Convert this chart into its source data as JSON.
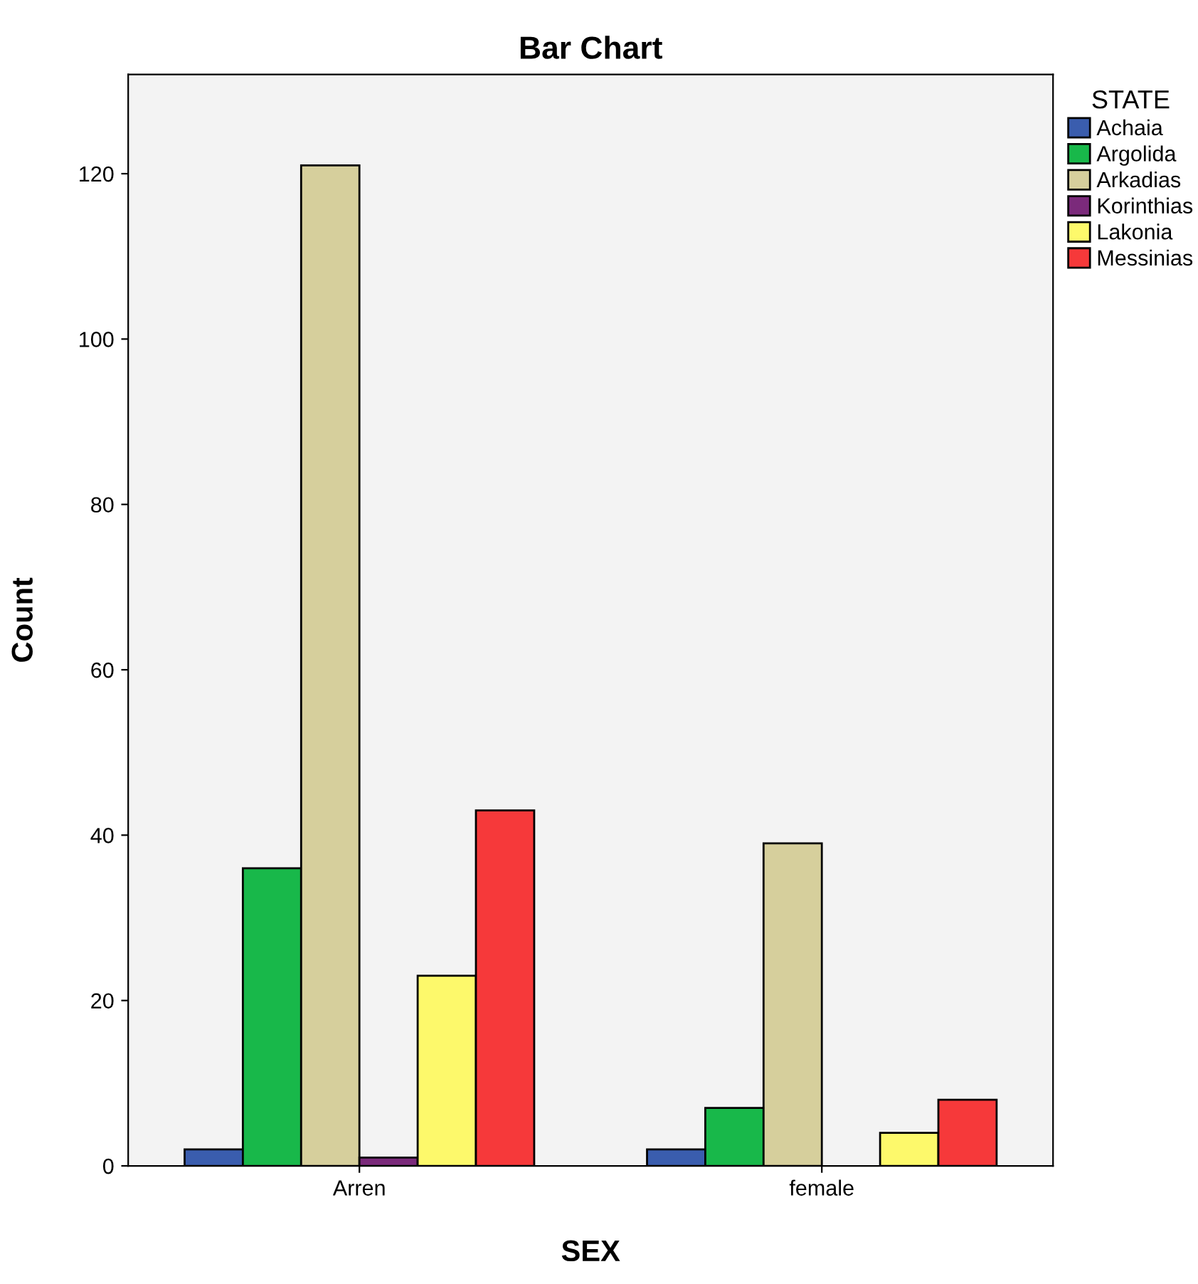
{
  "chart_data": {
    "type": "bar",
    "title": "Bar Chart",
    "xlabel": "SEX",
    "ylabel": "Count",
    "legend_title": "STATE",
    "categories": [
      "Arren",
      "female"
    ],
    "series": [
      {
        "name": "Achaia",
        "color": "#3a5dae",
        "values": [
          2,
          2
        ]
      },
      {
        "name": "Argolida",
        "color": "#18b84a",
        "values": [
          36,
          7
        ]
      },
      {
        "name": "Arkadias",
        "color": "#d6cf9c",
        "values": [
          121,
          39
        ]
      },
      {
        "name": "Korinthias",
        "color": "#7b2a7b",
        "values": [
          1,
          null
        ]
      },
      {
        "name": "Lakonia",
        "color": "#fdf96b",
        "values": [
          23,
          4
        ]
      },
      {
        "name": "Messinias",
        "color": "#f6393a",
        "values": [
          43,
          8
        ]
      }
    ],
    "ylim": [
      0,
      132
    ],
    "yticks": [
      0,
      20,
      40,
      60,
      80,
      100,
      120
    ],
    "grid": false,
    "legend": "top right"
  }
}
